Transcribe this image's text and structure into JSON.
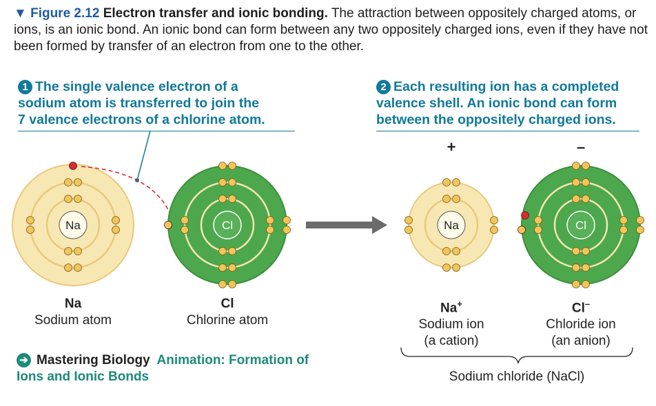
{
  "caption": {
    "figure": "▼ Figure 2.12",
    "title": "Electron transfer and ionic bonding.",
    "text": " The attraction between oppositely charged atoms, or ions, is an ionic bond. An ionic bond can form between any two oppositely charged ions, even if they have not been formed by transfer of an electron from one to the other."
  },
  "step1": {
    "num": "1",
    "line1": "The single valence electron of a",
    "line2": "sodium atom is transferred to join the",
    "line3": "7 valence electrons of a chlorine atom."
  },
  "step2": {
    "num": "2",
    "line1": "Each resulting ion has a completed",
    "line2": "valence shell. An ionic bond can form",
    "line3": "between the oppositely charged ions."
  },
  "charges": {
    "plus": "+",
    "minus": "–"
  },
  "atoms": {
    "na_atom": {
      "center": "Na",
      "symbol": "Na",
      "name": "Sodium atom"
    },
    "cl_atom": {
      "center": "Cl",
      "symbol": "Cl",
      "name": "Chlorine atom"
    },
    "na_ion": {
      "center": "Na",
      "symbol": "Na",
      "sup": "+",
      "name": "Sodium ion",
      "sub": "(a cation)"
    },
    "cl_ion": {
      "center": "Cl",
      "symbol": "Cl",
      "sup": "–",
      "name": "Chloride ion",
      "sub": "(an anion)"
    }
  },
  "bracket_label": "Sodium chloride (NaCl)",
  "mastering": {
    "icon": "arrow-right-icon",
    "brand": "Mastering Biology",
    "link_line1": "Animation: Formation of",
    "link_line2": "Ions and Ionic Bonds"
  },
  "colors": {
    "accent": "#12799a",
    "pale_shell": "#f7e7b3",
    "green_shell": "#4da84d",
    "electron": "#f2c55c",
    "transferred_electron": "#d62f2f"
  }
}
